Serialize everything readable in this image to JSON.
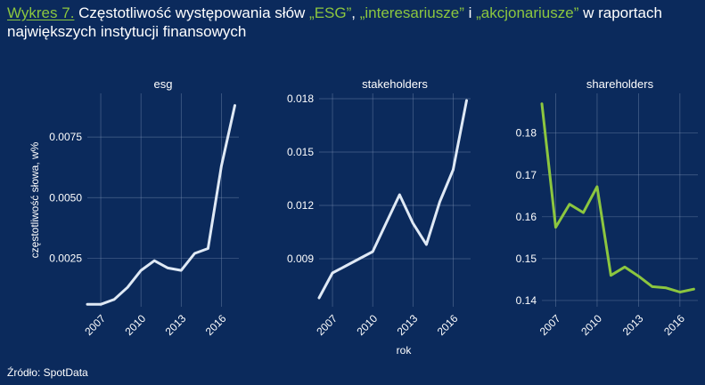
{
  "header": {
    "prefix": "Wykres 7.",
    "text_1": " Częstotliwość występowania słów ",
    "kw_1": "„ESG”",
    "sep_1": ", ",
    "kw_2": "„interesariusze”",
    "sep_2": " i ",
    "kw_3": "„akcjonariusze”",
    "text_2": " w raportach największych instytucji finansowych"
  },
  "footer": {
    "source": "Źródło: SpotData"
  },
  "chart_data": [
    {
      "type": "line",
      "title": "esg",
      "xlabel": "",
      "ylabel": "częstotliwość słowa, w%",
      "color": "#dfe9f5",
      "xlim": [
        2006,
        2017.3
      ],
      "ylim": [
        0.0005,
        0.0093
      ],
      "xticks": [
        2007,
        2010,
        2013,
        2016
      ],
      "yticks": [
        0.0025,
        0.005,
        0.0075
      ],
      "ytick_labels": [
        "0.0025",
        "0.0050",
        "0.0075"
      ],
      "x": [
        2006,
        2007,
        2008,
        2009,
        2010,
        2011,
        2012,
        2013,
        2014,
        2015,
        2016,
        2017
      ],
      "values": [
        0.0006,
        0.0006,
        0.0008,
        0.0013,
        0.002,
        0.0024,
        0.0021,
        0.002,
        0.0027,
        0.0029,
        0.0063,
        0.0088
      ]
    },
    {
      "type": "line",
      "title": "stakeholders",
      "xlabel": "rok",
      "ylabel": "",
      "color": "#dfe9f5",
      "xlim": [
        2006,
        2017.3
      ],
      "ylim": [
        0.0063,
        0.0183
      ],
      "xticks": [
        2007,
        2010,
        2013,
        2016
      ],
      "yticks": [
        0.009,
        0.012,
        0.015,
        0.018
      ],
      "ytick_labels": [
        "0.009",
        "0.012",
        "0.015",
        "0.018"
      ],
      "x": [
        2006,
        2007,
        2008,
        2009,
        2010,
        2011,
        2012,
        2013,
        2014,
        2015,
        2016,
        2017
      ],
      "values": [
        0.0068,
        0.0082,
        0.0086,
        0.009,
        0.0094,
        0.011,
        0.0126,
        0.011,
        0.0098,
        0.0122,
        0.014,
        0.0179
      ]
    },
    {
      "type": "line",
      "title": "shareholders",
      "xlabel": "",
      "ylabel": "",
      "color": "#8cc63f",
      "xlim": [
        2006,
        2017.3
      ],
      "ylim": [
        0.1385,
        0.1895
      ],
      "xticks": [
        2007,
        2010,
        2013,
        2016
      ],
      "yticks": [
        0.14,
        0.15,
        0.16,
        0.17,
        0.18
      ],
      "ytick_labels": [
        "0.14",
        "0.15",
        "0.16",
        "0.17",
        "0.18"
      ],
      "x": [
        2006,
        2007,
        2008,
        2009,
        2010,
        2011,
        2012,
        2013,
        2014,
        2015,
        2016,
        2017
      ],
      "values": [
        0.187,
        0.1575,
        0.163,
        0.161,
        0.1672,
        0.146,
        0.148,
        0.1458,
        0.1433,
        0.143,
        0.142,
        0.1427
      ]
    }
  ]
}
